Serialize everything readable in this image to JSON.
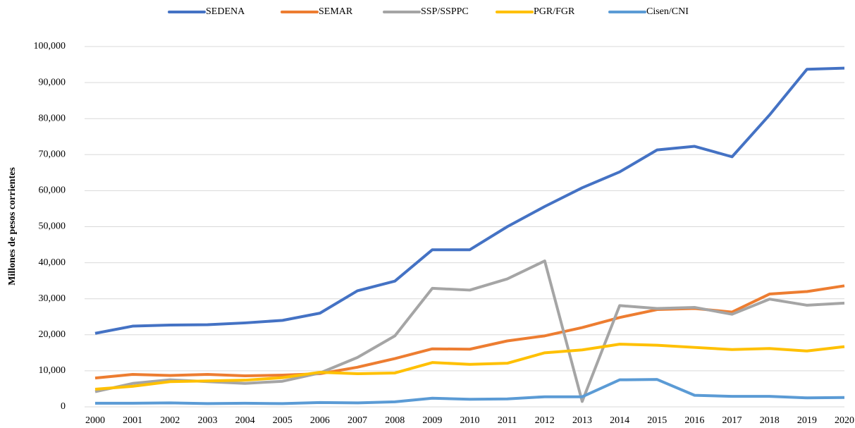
{
  "chart_data": {
    "type": "line",
    "y_label": "Millones de pesos corrientes",
    "categories": [
      "2000",
      "2001",
      "2002",
      "2003",
      "2004",
      "2005",
      "2006",
      "2007",
      "2008",
      "2009",
      "2010",
      "2011",
      "2012",
      "2013",
      "2014",
      "2015",
      "2016",
      "2017",
      "2018",
      "2019",
      "2020"
    ],
    "series": [
      {
        "name": "SEDENA",
        "color": "#4472c4",
        "values": [
          20400,
          22400,
          22700,
          22800,
          23300,
          24000,
          26000,
          32200,
          34900,
          43600,
          43600,
          50000,
          55600,
          60800,
          65200,
          71300,
          72300,
          69400,
          81000,
          93700,
          94000
        ]
      },
      {
        "name": "SEMAR",
        "color": "#ed7d31",
        "values": [
          8000,
          9000,
          8700,
          9000,
          8600,
          8800,
          9200,
          11000,
          13400,
          16100,
          16000,
          18300,
          19700,
          22000,
          24800,
          27000,
          27300,
          26300,
          31300,
          32000,
          33600
        ]
      },
      {
        "name": "SSP/SSPPC",
        "color": "#a5a5a5",
        "values": [
          4200,
          6500,
          7500,
          7000,
          6500,
          7100,
          9400,
          13700,
          19700,
          32900,
          32400,
          35500,
          40500,
          1500,
          28100,
          27300,
          27600,
          25700,
          29900,
          28200,
          28800
        ]
      },
      {
        "name": "PGR/FGR",
        "color": "#ffc000",
        "values": [
          4900,
          5700,
          7000,
          7200,
          7400,
          8100,
          9600,
          9200,
          9400,
          12300,
          11800,
          12100,
          15000,
          15800,
          17400,
          17100,
          16500,
          15900,
          16200,
          15500,
          16700
        ]
      },
      {
        "name": "Cisen/CNI",
        "color": "#5b9bd5",
        "values": [
          1000,
          1000,
          1100,
          900,
          1000,
          900,
          1200,
          1100,
          1400,
          2400,
          2100,
          2200,
          2800,
          2800,
          7500,
          7600,
          3200,
          2900,
          2900,
          2500,
          2600
        ]
      }
    ],
    "ylim": [
      0,
      100000
    ],
    "yticks": [
      0,
      {
        "value": 10000,
        "label": "10,000"
      },
      {
        "value": 20000,
        "label": "20,000"
      },
      {
        "value": 30000,
        "label": "30,000"
      },
      {
        "value": 40000,
        "label": "40,000"
      },
      {
        "value": 50000,
        "label": "50,000"
      },
      {
        "value": 60000,
        "label": "60,000"
      },
      {
        "value": 70000,
        "label": "70,000"
      },
      {
        "value": 80000,
        "label": "80,000"
      },
      {
        "value": 90000,
        "label": "90,000"
      },
      {
        "value": 100000,
        "label": "100,000"
      }
    ],
    "grid": true,
    "legend": "top"
  }
}
